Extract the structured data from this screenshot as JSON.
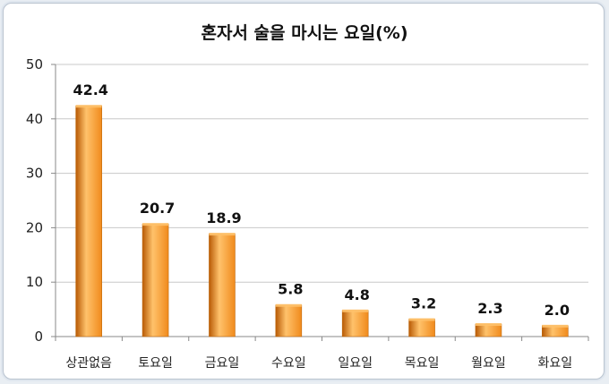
{
  "chart_data": {
    "type": "bar",
    "title": "혼자서 술을 마시는 요일(%)",
    "categories": [
      "상관없음",
      "토요일",
      "금요일",
      "수요일",
      "일요일",
      "목요일",
      "월요일",
      "화요일"
    ],
    "values": [
      42.4,
      20.7,
      18.9,
      5.8,
      4.8,
      3.2,
      2.3,
      2.0
    ],
    "value_labels": [
      "42.4",
      "20.7",
      "18.9",
      "5.8",
      "4.8",
      "3.2",
      "2.3",
      "2.0"
    ],
    "ylim": [
      0,
      50
    ],
    "yticks": [
      0,
      10,
      20,
      30,
      40,
      50
    ],
    "xlabel": "",
    "ylabel": "",
    "grid": true,
    "bar_color": "#f08a1c",
    "bar_color_light": "#ffc26b",
    "bar_color_dark": "#b85a05",
    "grid_color": "#c8c8c8"
  }
}
